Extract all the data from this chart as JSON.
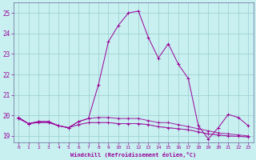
{
  "xlabel": "Windchill (Refroidissement éolien,°C)",
  "bg_color": "#c8f0f0",
  "grid_color": "#99cccc",
  "line_color": "#990099",
  "xlim": [
    -0.5,
    23.5
  ],
  "ylim": [
    18.7,
    25.5
  ],
  "xticks": [
    0,
    1,
    2,
    3,
    4,
    5,
    6,
    7,
    8,
    9,
    10,
    11,
    12,
    13,
    14,
    15,
    16,
    17,
    18,
    19,
    20,
    21,
    22,
    23
  ],
  "yticks": [
    19,
    20,
    21,
    22,
    23,
    24,
    25
  ],
  "series": [
    [
      19.9,
      19.6,
      19.7,
      19.7,
      19.5,
      19.4,
      19.7,
      19.85,
      21.5,
      23.6,
      24.4,
      25.0,
      25.1,
      23.8,
      22.8,
      23.5,
      22.5,
      21.8,
      19.5,
      18.85,
      19.4,
      20.05,
      19.9,
      19.5
    ],
    [
      19.9,
      19.6,
      19.7,
      19.7,
      19.5,
      19.4,
      19.7,
      19.85,
      19.9,
      19.9,
      19.85,
      19.85,
      19.85,
      19.75,
      19.65,
      19.65,
      19.55,
      19.45,
      19.35,
      19.25,
      19.15,
      19.1,
      19.05,
      19.0
    ],
    [
      19.85,
      19.6,
      19.65,
      19.65,
      19.5,
      19.4,
      19.55,
      19.65,
      19.65,
      19.65,
      19.6,
      19.6,
      19.6,
      19.55,
      19.45,
      19.4,
      19.35,
      19.3,
      19.2,
      19.1,
      19.05,
      19.0,
      18.98,
      18.95
    ],
    [
      19.85,
      19.6,
      19.65,
      19.65,
      19.5,
      19.4,
      19.55,
      19.65,
      19.65,
      19.65,
      19.6,
      19.6,
      19.6,
      19.55,
      19.45,
      19.4,
      19.35,
      19.3,
      19.2,
      19.1,
      19.05,
      19.0,
      18.98,
      18.95
    ]
  ]
}
